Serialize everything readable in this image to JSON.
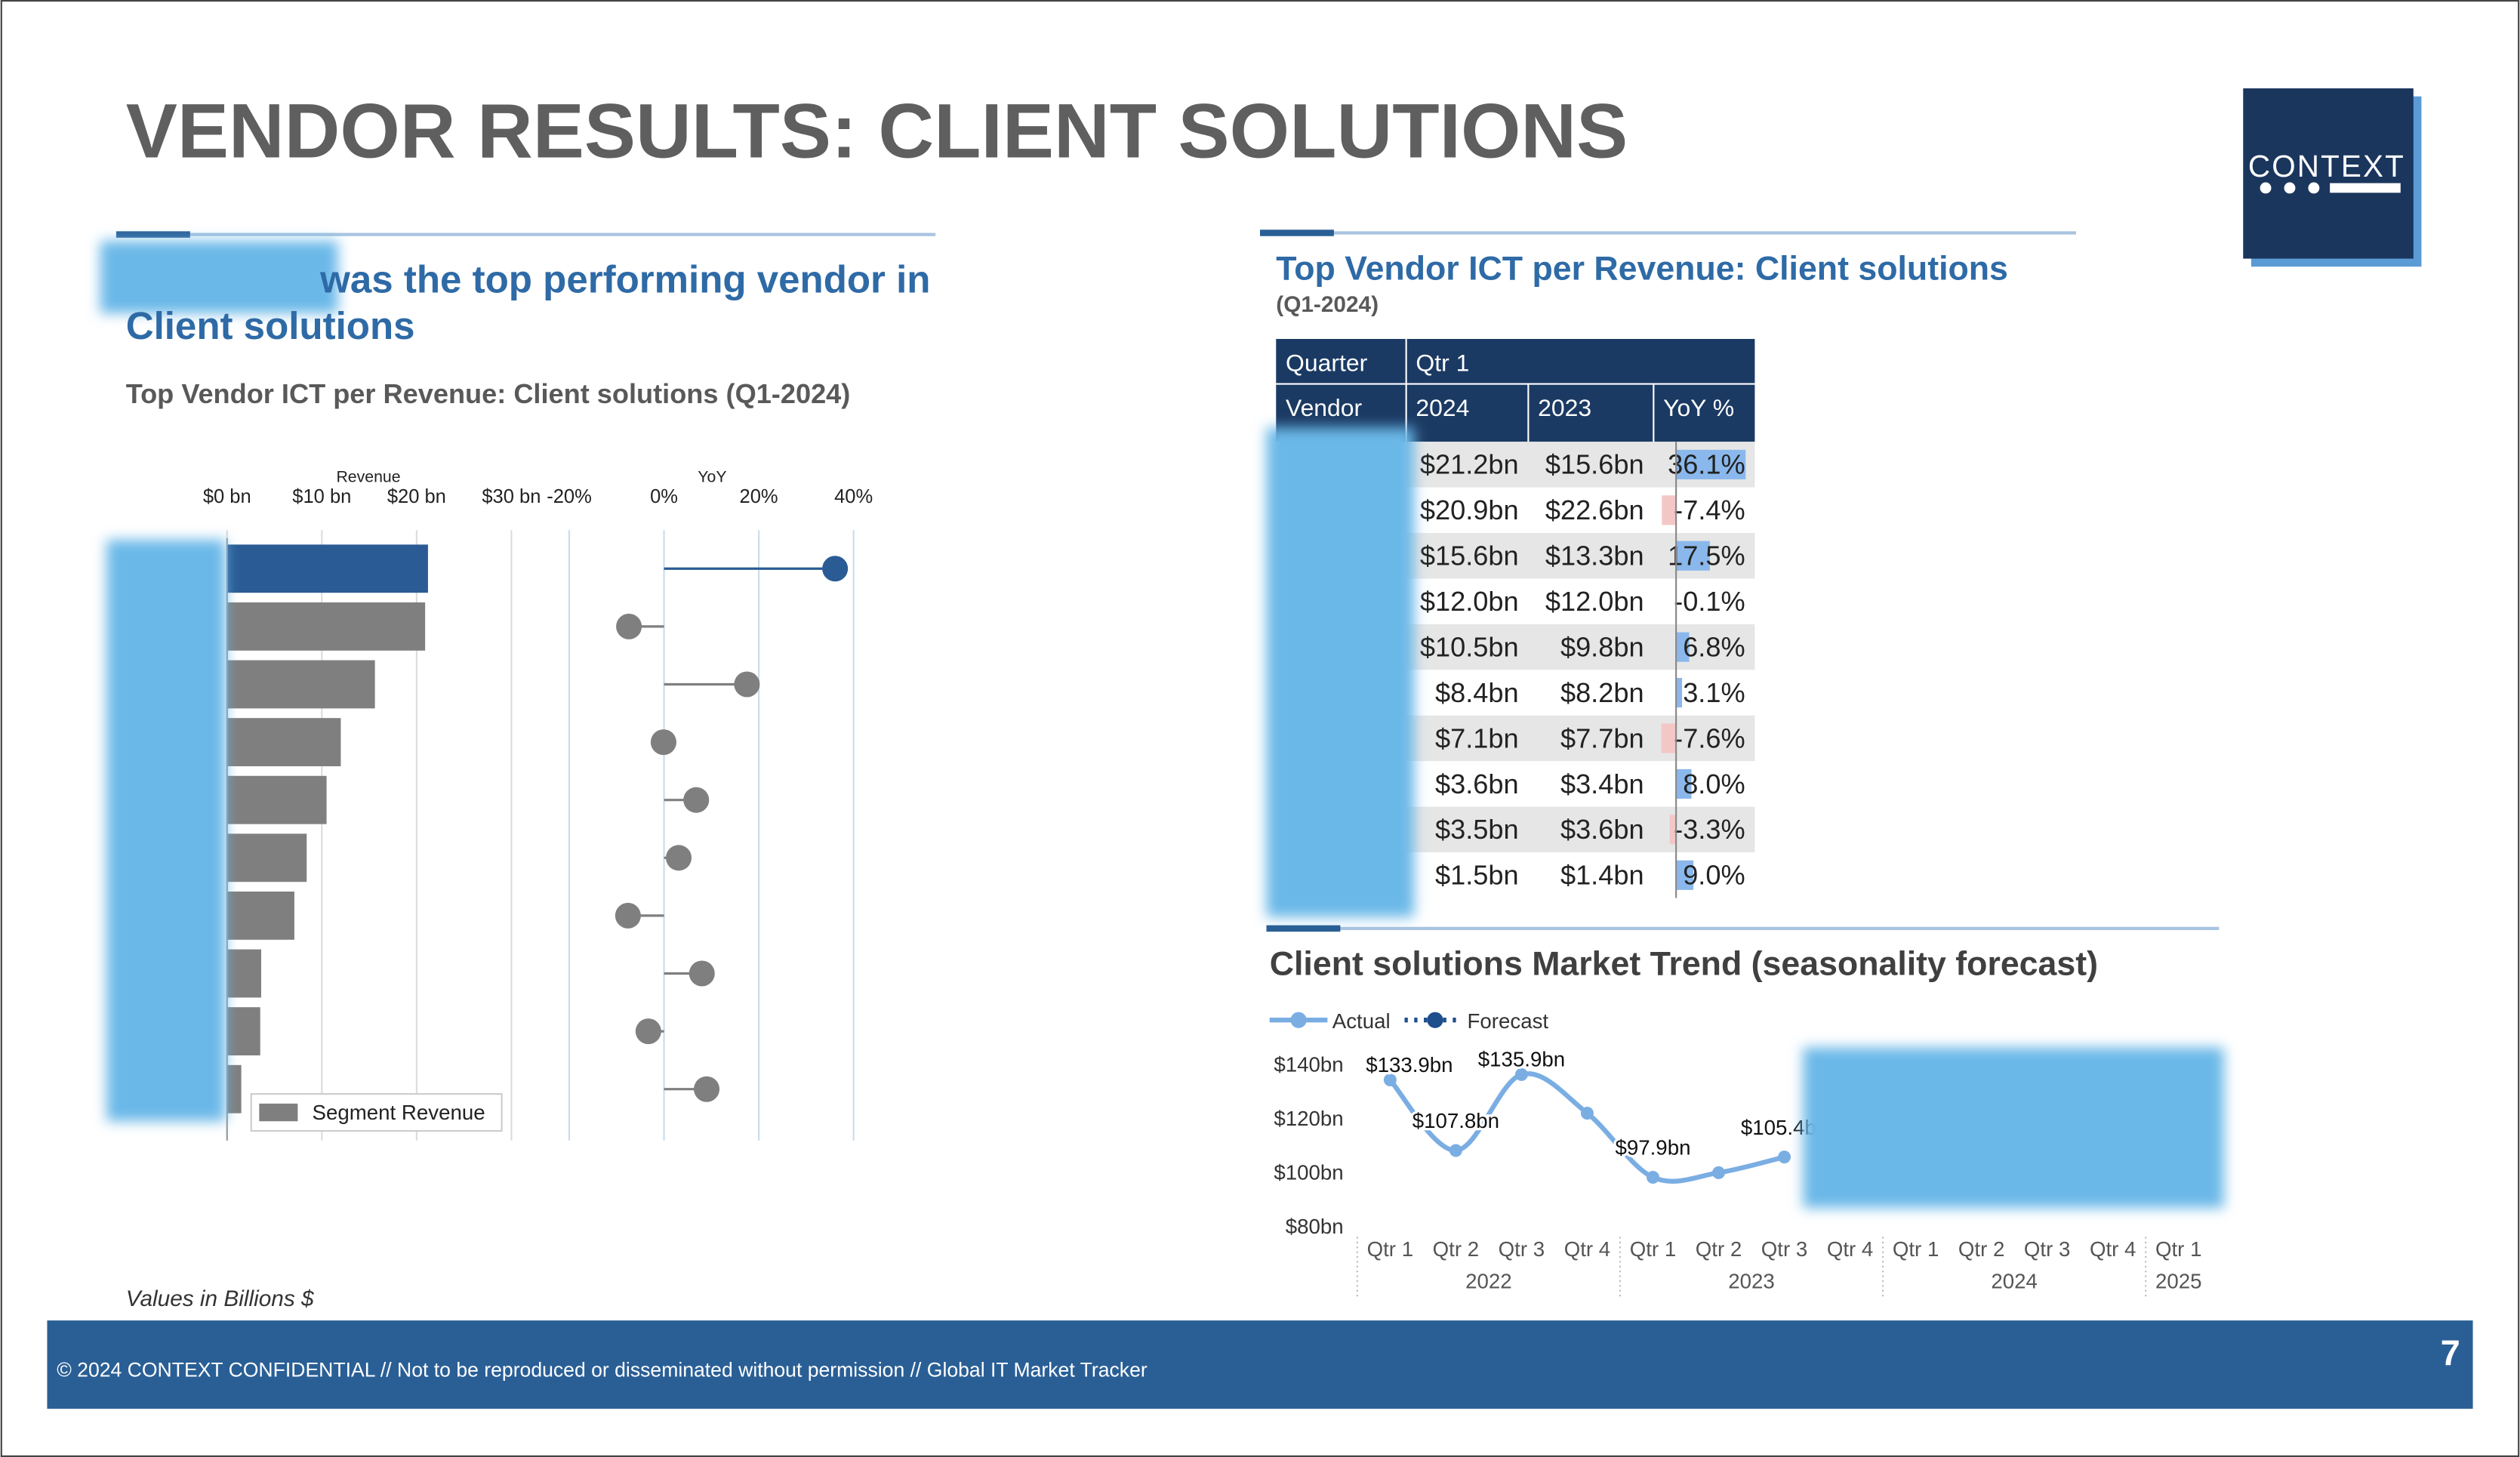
{
  "title": "VENDOR RESULTS: CLIENT SOLUTIONS",
  "logo": "CONTEXT",
  "headline_lines": [
    "was the top performing vendor in",
    "Client solutions"
  ],
  "subtitle": "Top Vendor ICT per Revenue: Client solutions (Q1-2024)",
  "note": "Values in Billions $",
  "table_title": "Top Vendor ICT per Revenue: Client solutions",
  "table_subtitle": "(Q1-2024)",
  "table": {
    "header": [
      [
        "Quarter",
        "Qtr 1"
      ],
      [
        "Vendor",
        "2024",
        "2023",
        "YoY %"
      ]
    ],
    "rows": [
      [
        "$21.2bn",
        "$15.6bn",
        "36.1%"
      ],
      [
        "$20.9bn",
        "$22.6bn",
        "-7.4%"
      ],
      [
        "$15.6bn",
        "$13.3bn",
        "17.5%"
      ],
      [
        "$12.0bn",
        "$12.0bn",
        "-0.1%"
      ],
      [
        "$10.5bn",
        "$9.8bn",
        "6.8%"
      ],
      [
        "$8.4bn",
        "$8.2bn",
        "3.1%"
      ],
      [
        "$7.1bn",
        "$7.7bn",
        "-7.6%"
      ],
      [
        "$3.6bn",
        "$3.4bn",
        "8.0%"
      ],
      [
        "$3.5bn",
        "$3.6bn",
        "-3.3%"
      ],
      [
        "$1.5bn",
        "$1.4bn",
        "9.0%"
      ]
    ]
  },
  "footer": "© 2024 CONTEXT CONFIDENTIAL // Not to be reproduced or disseminated without permission // Global IT Market Tracker",
  "page_number": "7",
  "chart_data": [
    {
      "type": "hbar",
      "x_label": "Revenue",
      "categories": [
        null,
        null,
        null,
        null,
        null,
        null,
        null,
        null,
        null,
        null
      ],
      "series": [
        {
          "name": "Segment Revenue",
          "color": "#7f7f7f",
          "values": [
            21.2,
            20.9,
            15.6,
            12.0,
            10.5,
            8.4,
            7.1,
            3.6,
            3.5,
            1.5
          ]
        }
      ],
      "colors": [
        "#2a5b94",
        "#7f7f7f",
        "#7f7f7f",
        "#7f7f7f",
        "#7f7f7f",
        "#7f7f7f",
        "#7f7f7f",
        "#7f7f7f",
        "#7f7f7f",
        "#7f7f7f"
      ],
      "xlim": [
        0,
        35
      ],
      "xticks": [
        {
          "value": 0,
          "label": "$0 bn"
        },
        {
          "value": 10,
          "label": "$10 bn"
        },
        {
          "value": 20,
          "label": "$20 bn"
        },
        {
          "value": 30,
          "label": "$30 bn"
        }
      ],
      "grid": true
    },
    {
      "type": "lollipop",
      "x_label": "YoY",
      "values": [
        36.1,
        -7.4,
        17.5,
        -0.1,
        6.8,
        3.1,
        -7.6,
        8.0,
        -3.3,
        9.0
      ],
      "colors": [
        "#2a5b94",
        "#7f7f7f",
        "#7f7f7f",
        "#7f7f7f",
        "#7f7f7f",
        "#7f7f7f",
        "#7f7f7f",
        "#7f7f7f",
        "#7f7f7f",
        "#7f7f7f"
      ],
      "xlim": [
        -20,
        45
      ],
      "xticks": [
        {
          "value": -20,
          "label": "-20%"
        },
        {
          "value": 0,
          "label": "0%"
        },
        {
          "value": 20,
          "label": "20%"
        },
        {
          "value": 40,
          "label": "40%"
        }
      ],
      "grid": true
    },
    {
      "type": "line",
      "title": "Client solutions Market Trend (seasonality forecast)",
      "groups": [
        {
          "label": "2022",
          "categories": [
            "Qtr 1",
            "Qtr 2",
            "Qtr 3",
            "Qtr 4"
          ]
        },
        {
          "label": "2023",
          "categories": [
            "Qtr 1",
            "Qtr 2",
            "Qtr 3",
            "Qtr 4"
          ]
        },
        {
          "label": "2024",
          "categories": [
            "Qtr 1",
            "Qtr 2",
            "Qtr 3",
            "Qtr 4"
          ]
        },
        {
          "label": "2025",
          "categories": [
            "Qtr 1"
          ]
        }
      ],
      "series": [
        {
          "name": "Actual",
          "color": "#7aaee3",
          "values": [
            133.9,
            107.8,
            135.9,
            121.6,
            97.9,
            99.6,
            105.4,
            null,
            null,
            null,
            null,
            null,
            null
          ],
          "value_labels": [
            "$133.9bn",
            "$107.8bn",
            "$135.9bn",
            null,
            "$97.9bn",
            null,
            "$105.4bn",
            null,
            null,
            null,
            null,
            null,
            null
          ]
        },
        {
          "name": "Forecast",
          "color": "#1f4e8c",
          "dashed": true,
          "values": [
            null,
            null,
            null,
            null,
            null,
            null,
            null,
            null,
            null,
            null,
            null,
            null,
            null
          ]
        }
      ],
      "ylim": [
        80,
        140
      ],
      "yticks": [
        {
          "value": 80,
          "label": "$80bn"
        },
        {
          "value": 100,
          "label": "$100bn"
        },
        {
          "value": 120,
          "label": "$120bn"
        },
        {
          "value": 140,
          "label": "$140bn"
        }
      ]
    }
  ]
}
